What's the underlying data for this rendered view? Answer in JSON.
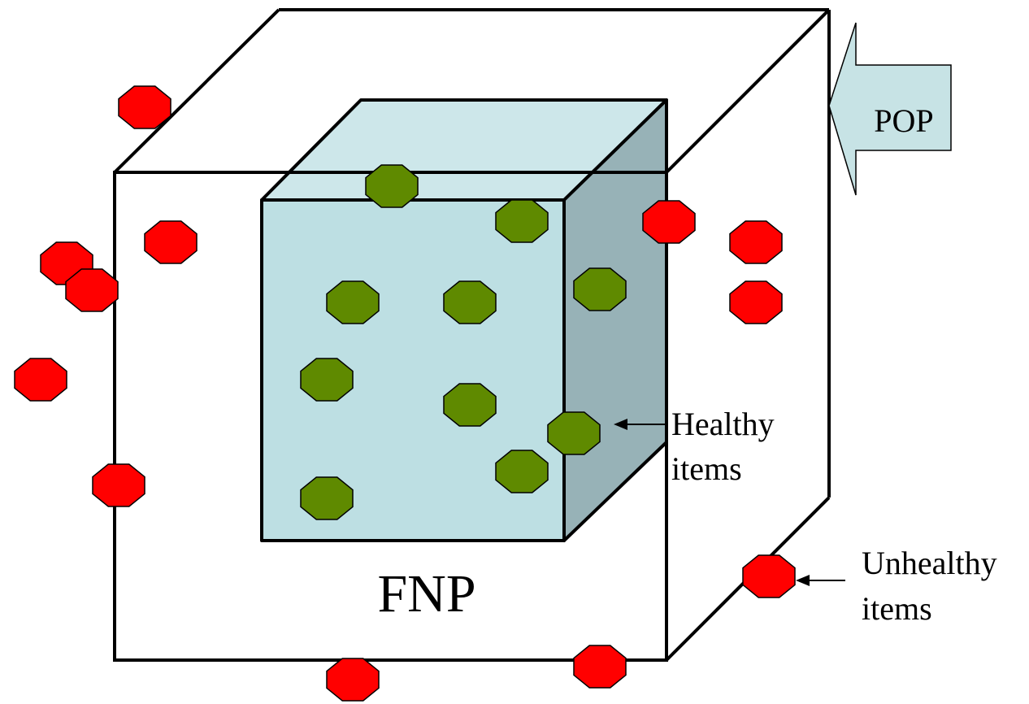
{
  "labels": {
    "pop": "POP",
    "fnp": "FNP",
    "healthy": [
      "Healthy",
      "items"
    ],
    "unhealthy": [
      "Unhealthy",
      "items"
    ]
  },
  "colors": {
    "outline": "#000000",
    "inner_front": "#bddfe3",
    "inner_top": "#cde7ea",
    "inner_side": "#97b2b7",
    "pop_arrow_fill": "#c7e3e5",
    "healthy_fill": "#5f8a00",
    "unhealthy_fill": "#ff0000",
    "background": "#ffffff"
  },
  "legend": {
    "healthy_item_icon": "green-octagon",
    "unhealthy_item_icon": "red-octagon"
  }
}
